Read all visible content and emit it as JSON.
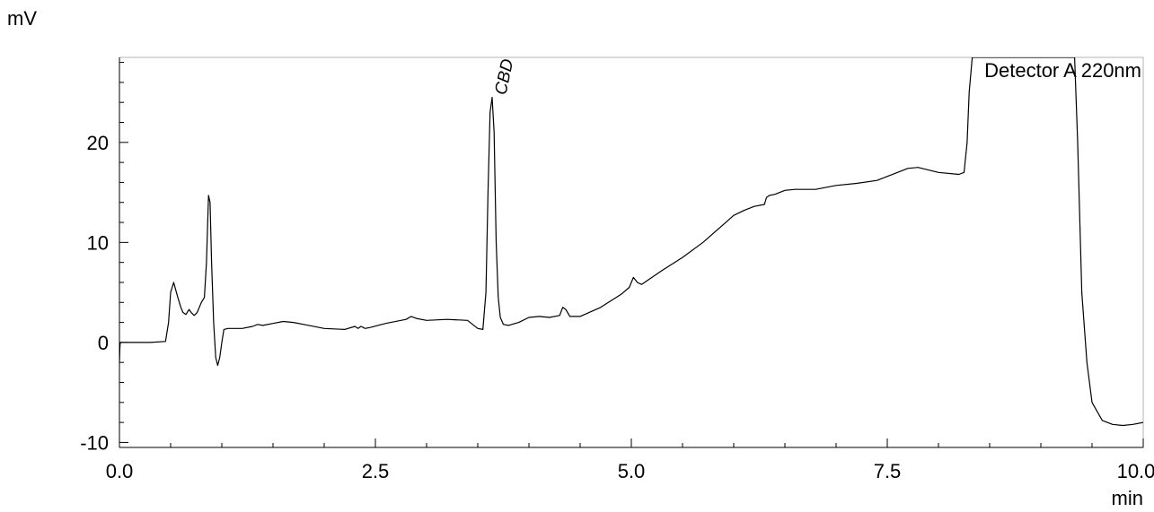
{
  "chart_data": {
    "type": "line",
    "title": "",
    "xlabel": "min",
    "ylabel": "mV",
    "xlim": [
      0.0,
      10.0
    ],
    "ylim": [
      -10.5,
      28.5
    ],
    "x_ticks": [
      0.0,
      2.5,
      5.0,
      7.5,
      10.0
    ],
    "x_tick_labels": [
      "0.0",
      "2.5",
      "5.0",
      "7.5",
      "10.0"
    ],
    "y_ticks": [
      -10,
      0,
      10,
      20
    ],
    "y_tick_labels": [
      "-10",
      "0",
      "10",
      "20"
    ],
    "grid": false,
    "legend": "top-right",
    "series": [
      {
        "name": "Detector A 220nm",
        "color": "#000000",
        "x": [
          0.0,
          0.005,
          0.01,
          0.02,
          0.1,
          0.3,
          0.45,
          0.48,
          0.5,
          0.53,
          0.57,
          0.6,
          0.62,
          0.65,
          0.68,
          0.7,
          0.73,
          0.76,
          0.8,
          0.83,
          0.85,
          0.87,
          0.885,
          0.9,
          0.92,
          0.94,
          0.96,
          0.98,
          1.0,
          1.02,
          1.06,
          1.1,
          1.2,
          1.3,
          1.35,
          1.4,
          1.5,
          1.6,
          1.7,
          1.8,
          2.0,
          2.2,
          2.3,
          2.33,
          2.36,
          2.4,
          2.45,
          2.6,
          2.8,
          2.85,
          2.9,
          3.0,
          3.2,
          3.4,
          3.5,
          3.55,
          3.58,
          3.6,
          3.62,
          3.64,
          3.66,
          3.68,
          3.7,
          3.72,
          3.75,
          3.8,
          3.9,
          4.0,
          4.1,
          4.2,
          4.3,
          4.33,
          4.36,
          4.4,
          4.5,
          4.7,
          4.9,
          4.98,
          5.02,
          5.06,
          5.1,
          5.3,
          5.5,
          5.7,
          5.9,
          6.0,
          6.1,
          6.2,
          6.3,
          6.32,
          6.35,
          6.4,
          6.5,
          6.6,
          6.8,
          7.0,
          7.2,
          7.4,
          7.6,
          7.7,
          7.8,
          8.0,
          8.2,
          8.25,
          8.28,
          8.3,
          8.33,
          8.36,
          8.4,
          9.3,
          9.33,
          9.36,
          9.4,
          9.45,
          9.5,
          9.6,
          9.7,
          9.8,
          9.9,
          10.0
        ],
        "y": [
          -2.0,
          -0.3,
          0.0,
          0.0,
          0.0,
          0.0,
          0.1,
          2.0,
          5.0,
          6.0,
          4.5,
          3.5,
          3.0,
          2.8,
          3.3,
          3.0,
          2.7,
          3.0,
          4.0,
          4.5,
          8.0,
          14.7,
          14.0,
          8.0,
          2.0,
          -1.5,
          -2.3,
          -1.5,
          0.0,
          1.3,
          1.4,
          1.4,
          1.4,
          1.6,
          1.8,
          1.7,
          1.9,
          2.1,
          2.0,
          1.8,
          1.4,
          1.3,
          1.6,
          1.4,
          1.6,
          1.4,
          1.5,
          1.9,
          2.3,
          2.6,
          2.4,
          2.2,
          2.3,
          2.2,
          1.4,
          1.3,
          5.0,
          15.0,
          23.0,
          24.5,
          21.0,
          10.0,
          4.5,
          2.5,
          1.8,
          1.7,
          2.0,
          2.5,
          2.6,
          2.5,
          2.7,
          3.5,
          3.3,
          2.6,
          2.6,
          3.5,
          4.8,
          5.5,
          6.5,
          6.0,
          5.8,
          7.2,
          8.5,
          10.0,
          11.8,
          12.7,
          13.2,
          13.6,
          13.8,
          14.5,
          14.7,
          14.8,
          15.2,
          15.3,
          15.3,
          15.7,
          15.9,
          16.2,
          17.0,
          17.4,
          17.5,
          17.0,
          16.8,
          17.0,
          20.0,
          25.0,
          28.5,
          28.5,
          28.5,
          28.5,
          28.5,
          20.0,
          5.0,
          -2.0,
          -6.0,
          -7.8,
          -8.2,
          -8.3,
          -8.2,
          -8.0
        ]
      }
    ],
    "annotations": [
      {
        "text": "CBD",
        "x": 3.65,
        "y": 24.5
      }
    ]
  }
}
